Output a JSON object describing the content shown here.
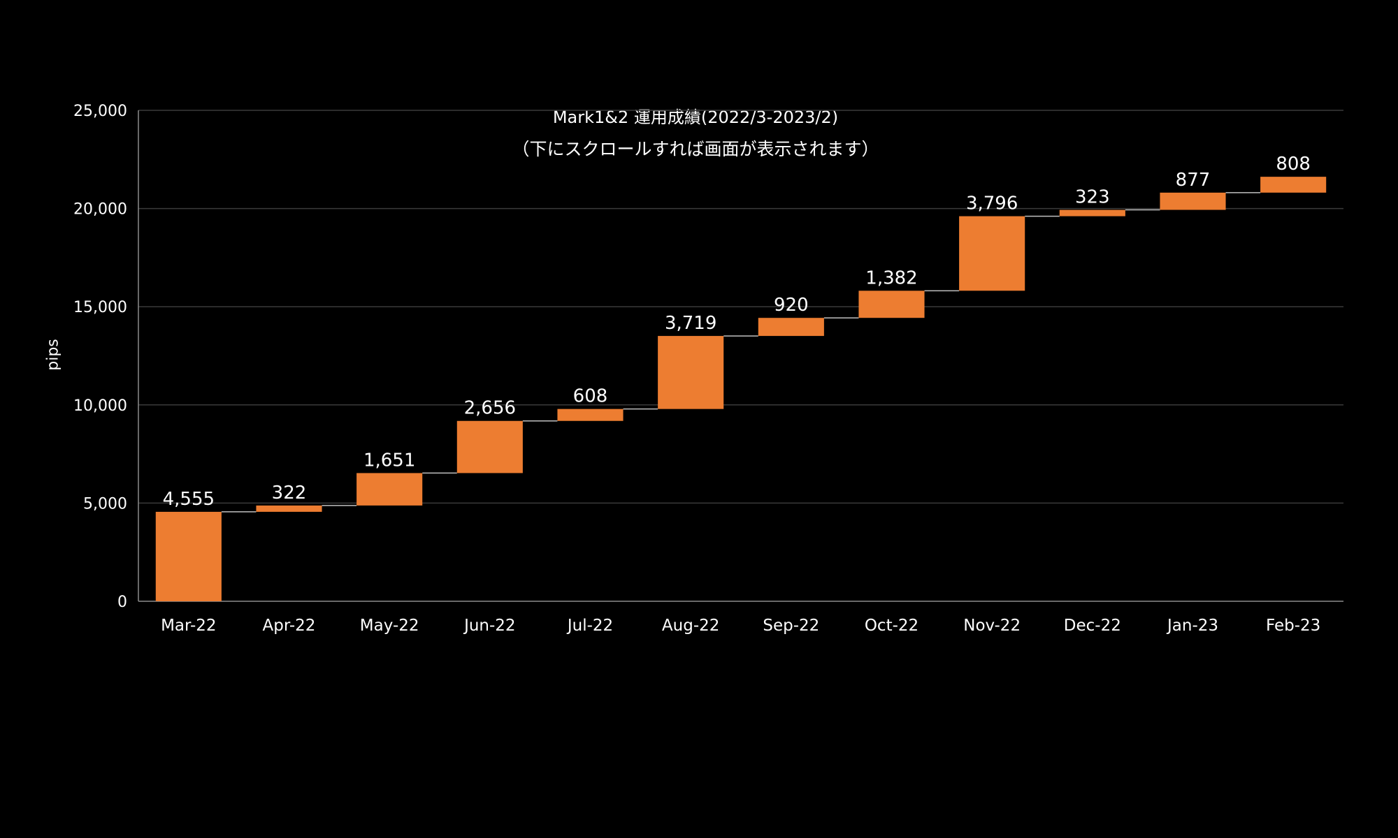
{
  "chart_data": {
    "type": "waterfall",
    "title": "Mark1&2 運用成績(2022/3-2023/2)",
    "subtitle": "（下にスクロールすれば画面が表示されます）",
    "ylabel": "pips",
    "xlabel": "",
    "ylim": [
      0,
      25000
    ],
    "yticks": [
      0,
      5000,
      10000,
      15000,
      20000,
      25000
    ],
    "ytick_labels": [
      "0",
      "5,000",
      "10,000",
      "15,000",
      "20,000",
      "25,000"
    ],
    "categories": [
      "Mar-22",
      "Apr-22",
      "May-22",
      "Jun-22",
      "Jul-22",
      "Aug-22",
      "Sep-22",
      "Oct-22",
      "Nov-22",
      "Dec-22",
      "Jan-23",
      "Feb-23"
    ],
    "values": [
      4555,
      322,
      1651,
      2656,
      608,
      3719,
      920,
      1382,
      3796,
      323,
      877,
      808
    ],
    "value_labels": [
      "4,555",
      "322",
      "1,651",
      "2,656",
      "608",
      "3,719",
      "920",
      "1,382",
      "3,796",
      "323",
      "877",
      "808"
    ],
    "grid": true,
    "legend": "none",
    "colors": {
      "bar": "#ED7D31",
      "grid": "#3a3a3a",
      "axis": "#8c8c8c",
      "connector": "#bfbfbf",
      "text": "#ffffff",
      "background": "#000000"
    }
  }
}
